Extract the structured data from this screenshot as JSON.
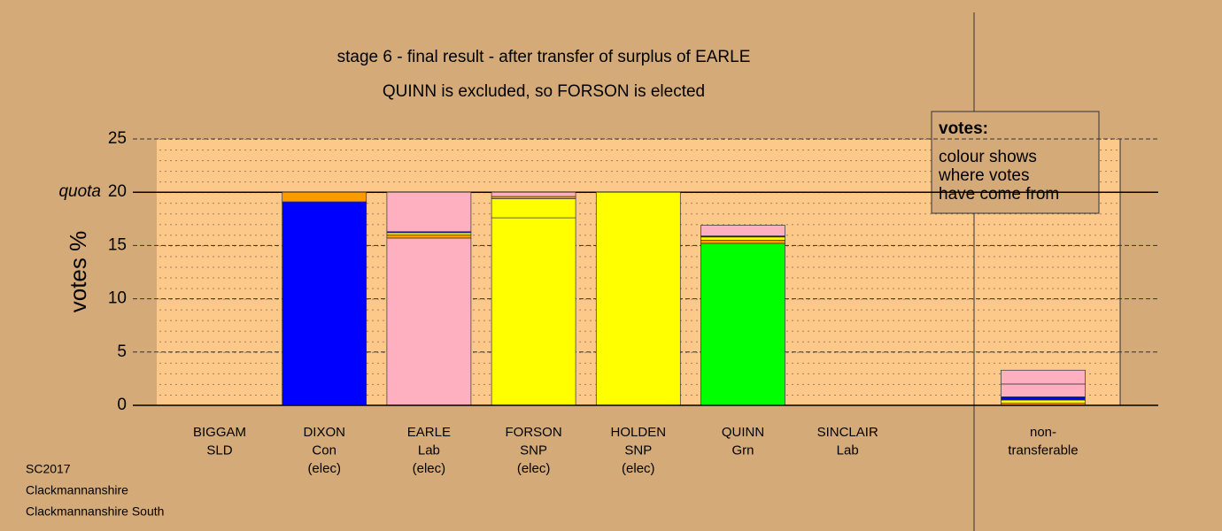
{
  "chart_data": {
    "type": "stacked-bar",
    "title": "stage 6 - final result - after transfer of surplus of EARLE",
    "subtitle": "QUINN is excluded, so FORSON is elected",
    "ylabel": "votes %",
    "quota_label": "quota",
    "quota": 20,
    "ylim": [
      0,
      25
    ],
    "yticks": [
      0,
      5,
      10,
      15,
      20,
      25
    ],
    "grid": true,
    "categories": [
      [
        "BIGGAM",
        "SLD"
      ],
      [
        "DIXON",
        "Con",
        "(elec)"
      ],
      [
        "EARLE",
        "Lab",
        "(elec)"
      ],
      [
        "FORSON",
        "SNP",
        "(elec)"
      ],
      [
        "HOLDEN",
        "SNP",
        "(elec)"
      ],
      [
        "QUINN",
        "Grn"
      ],
      [
        "SINCLAIR",
        "Lab"
      ],
      [
        "non-",
        "transferable"
      ]
    ],
    "values": [
      [],
      [
        19.1,
        0.9
      ],
      [
        15.7,
        0.3,
        0.2,
        0.1,
        3.7
      ],
      [
        17.6,
        1.8,
        0.2,
        0.4
      ],
      [
        20
      ],
      [
        15.2,
        0.3,
        0.3,
        0.1,
        1.0
      ],
      [],
      [
        0.2,
        0.3,
        0.3,
        1.2,
        1.3
      ]
    ],
    "colors": [
      [],
      [
        "#0000ff",
        "#ff9900"
      ],
      [
        "#ffb0c0",
        "#ff9900",
        "#ffff00",
        "#0000ff",
        "#ffb0c0"
      ],
      [
        "#ffff00",
        "#ffff00",
        "#ff9900",
        "#ffb0c0"
      ],
      [
        "#ffff00"
      ],
      [
        "#00ff00",
        "#ff9900",
        "#ffff00",
        "#0000ff",
        "#ffb0c0"
      ],
      [],
      [
        "#ff9900",
        "#ffff00",
        "#0000ff",
        "#ffb0c0",
        "#ffb0c0"
      ]
    ],
    "legend": {
      "title": "votes:",
      "lines": [
        "colour shows",
        "where votes",
        "have come from"
      ]
    },
    "footer": [
      "SC2017",
      "Clackmannanshire",
      "Clackmannanshire South"
    ]
  }
}
